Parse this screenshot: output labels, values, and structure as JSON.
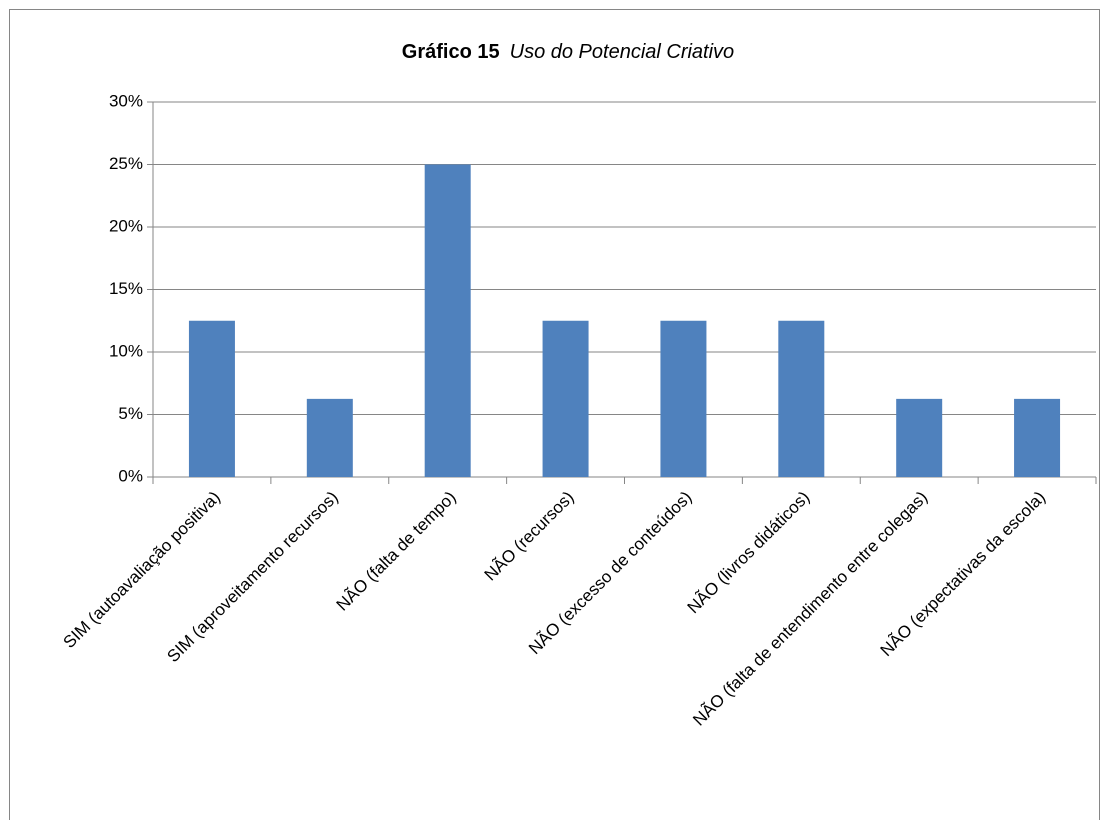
{
  "chart_data": {
    "type": "bar",
    "title": "Gráfico 15",
    "subtitle": "Uso do Potencial Criativo",
    "categories": [
      "SIM (autoavaliação positiva)",
      "SIM (aproveitamento recursos)",
      "NÃO (falta de tempo)",
      "NÃO (recursos)",
      "NÃO (excesso de conteúdos)",
      "NÃO (livros didáticos)",
      "NÃO (falta de entendimento entre colegas)",
      "NÃO (expectativas da escola)"
    ],
    "values": [
      12.5,
      6.25,
      25,
      12.5,
      12.5,
      12.5,
      6.25,
      6.25
    ],
    "color": "#4f81bd",
    "ylim": [
      0,
      30
    ],
    "yticks": [
      {
        "value": 0,
        "label": "0%"
      },
      {
        "value": 5,
        "label": "5%"
      },
      {
        "value": 10,
        "label": "10%"
      },
      {
        "value": 15,
        "label": "15%"
      },
      {
        "value": 20,
        "label": "20%"
      },
      {
        "value": 25,
        "label": "25%"
      },
      {
        "value": 30,
        "label": "30%"
      }
    ],
    "grid": true
  }
}
